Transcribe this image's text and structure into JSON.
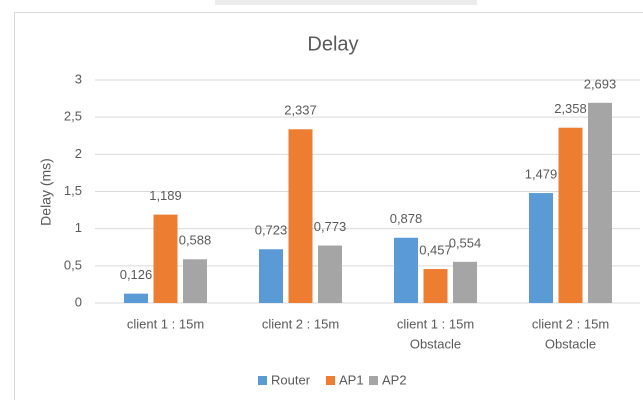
{
  "chart_data": {
    "type": "bar",
    "title": "Delay",
    "y_label": "Delay (ms)",
    "categories": [
      [
        "client 1 : 15m"
      ],
      [
        "client 2 : 15m"
      ],
      [
        "client 1 : 15m",
        "Obstacle"
      ],
      [
        "client 2 : 15m",
        "Obstacle"
      ]
    ],
    "series": [
      {
        "name": "Router",
        "color": "#5b9bd5",
        "values": [
          0.126,
          0.723,
          0.878,
          1.479
        ],
        "value_labels": [
          "0,126",
          "0,723",
          "0,878",
          "1,479"
        ]
      },
      {
        "name": "AP1",
        "color": "#ed7d31",
        "values": [
          1.189,
          2.337,
          0.457,
          2.358
        ],
        "value_labels": [
          "1,189",
          "2,337",
          "0,457",
          "2,358"
        ]
      },
      {
        "name": "AP2",
        "color": "#a5a5a5",
        "values": [
          0.588,
          0.773,
          0.554,
          2.693
        ],
        "value_labels": [
          "0,588",
          "0,773",
          "0,554",
          "2,693"
        ]
      }
    ],
    "ylim": [
      0,
      3
    ],
    "yticks": [
      0,
      {
        "value": 0.5,
        "label": "0,5"
      },
      1,
      {
        "value": 1.5,
        "label": "1,5"
      },
      2,
      {
        "value": 2.5,
        "label": "2,5"
      },
      3
    ],
    "grid": true,
    "legend": "bottom"
  }
}
